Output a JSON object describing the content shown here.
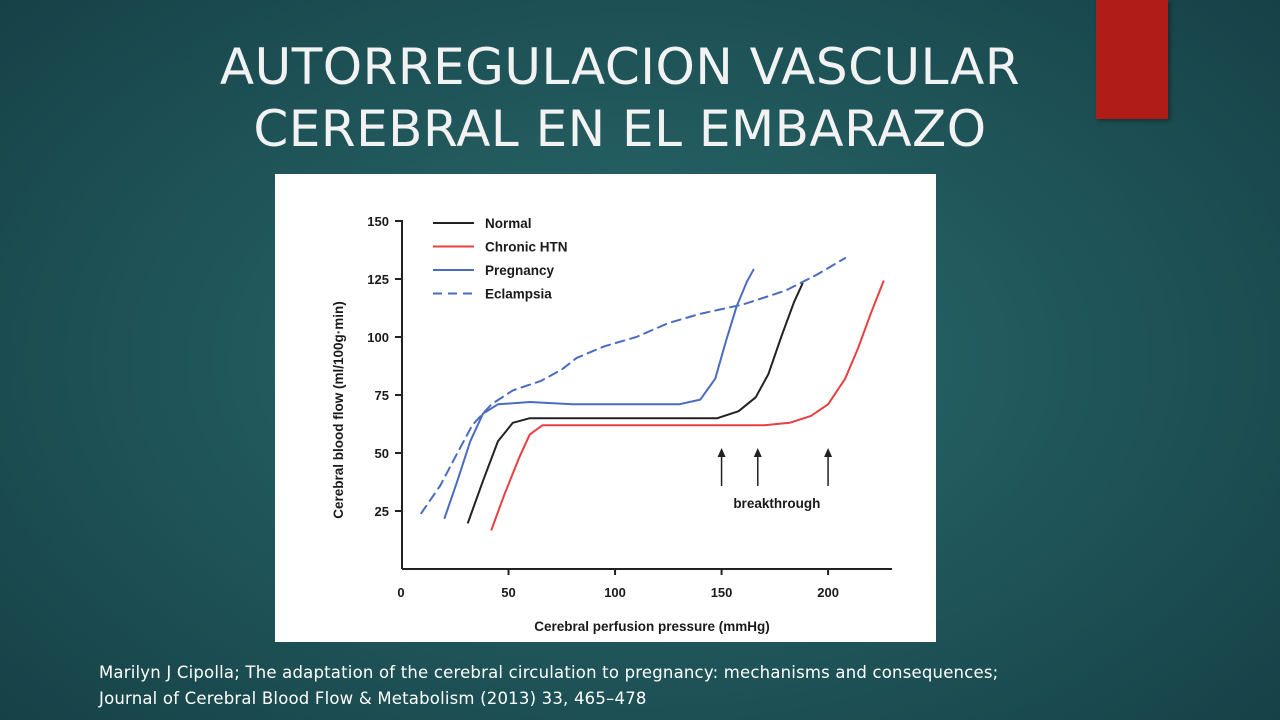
{
  "slide": {
    "title_line1": "AUTORREGULACION VASCULAR",
    "title_line2": "CEREBRAL EN EL EMBARAZO",
    "caption_line1": "Marilyn J Cipolla; The adaptation of the cerebral circulation to pregnancy: mechanisms and consequences;",
    "caption_line2": "Journal of Cerebral Blood Flow & Metabolism (2013) 33, 465–478",
    "accent_color": "#b01c17"
  },
  "chart_data": {
    "type": "line",
    "xlabel": "Cerebral perfusion pressure (mmHg)",
    "ylabel": "Cerebral blood flow (ml/100g·min)",
    "xlim": [
      0,
      230
    ],
    "ylim": [
      0,
      150
    ],
    "xticks": [
      0,
      50,
      100,
      150,
      200
    ],
    "yticks": [
      25,
      50,
      75,
      100,
      125,
      150
    ],
    "annotation": "breakthrough",
    "breakthrough_x": [
      150,
      167,
      200
    ],
    "legend_position": "top-left",
    "series": [
      {
        "name": "Normal",
        "color": "#222222",
        "dash": "solid",
        "points": [
          [
            31,
            20
          ],
          [
            38,
            38
          ],
          [
            45,
            55
          ],
          [
            52,
            63
          ],
          [
            60,
            65
          ],
          [
            80,
            65
          ],
          [
            110,
            65
          ],
          [
            135,
            65
          ],
          [
            148,
            65
          ],
          [
            158,
            68
          ],
          [
            166,
            74
          ],
          [
            172,
            84
          ],
          [
            178,
            100
          ],
          [
            184,
            115
          ],
          [
            188,
            123
          ]
        ]
      },
      {
        "name": "Chronic HTN",
        "color": "#e84040",
        "dash": "solid",
        "points": [
          [
            42,
            17
          ],
          [
            48,
            32
          ],
          [
            55,
            48
          ],
          [
            60,
            58
          ],
          [
            66,
            62
          ],
          [
            80,
            62
          ],
          [
            120,
            62
          ],
          [
            150,
            62
          ],
          [
            170,
            62
          ],
          [
            182,
            63
          ],
          [
            192,
            66
          ],
          [
            200,
            71
          ],
          [
            208,
            82
          ],
          [
            214,
            95
          ],
          [
            220,
            110
          ],
          [
            226,
            124
          ]
        ]
      },
      {
        "name": "Pregnancy",
        "color": "#4a6cc0",
        "dash": "solid",
        "points": [
          [
            20,
            22
          ],
          [
            26,
            38
          ],
          [
            32,
            55
          ],
          [
            38,
            67
          ],
          [
            45,
            71
          ],
          [
            60,
            72
          ],
          [
            80,
            71
          ],
          [
            110,
            71
          ],
          [
            130,
            71
          ],
          [
            140,
            73
          ],
          [
            147,
            82
          ],
          [
            152,
            98
          ],
          [
            157,
            113
          ],
          [
            162,
            124
          ],
          [
            165,
            129
          ]
        ]
      },
      {
        "name": "Eclampsia",
        "color": "#4a6cc0",
        "dash": "dashed",
        "points": [
          [
            9,
            24
          ],
          [
            18,
            36
          ],
          [
            26,
            50
          ],
          [
            33,
            62
          ],
          [
            42,
            71
          ],
          [
            52,
            77
          ],
          [
            65,
            81
          ],
          [
            75,
            86
          ],
          [
            82,
            91
          ],
          [
            95,
            96
          ],
          [
            110,
            100
          ],
          [
            125,
            106
          ],
          [
            140,
            110
          ],
          [
            160,
            114
          ],
          [
            180,
            120
          ],
          [
            195,
            127
          ],
          [
            208,
            134
          ]
        ]
      }
    ]
  }
}
